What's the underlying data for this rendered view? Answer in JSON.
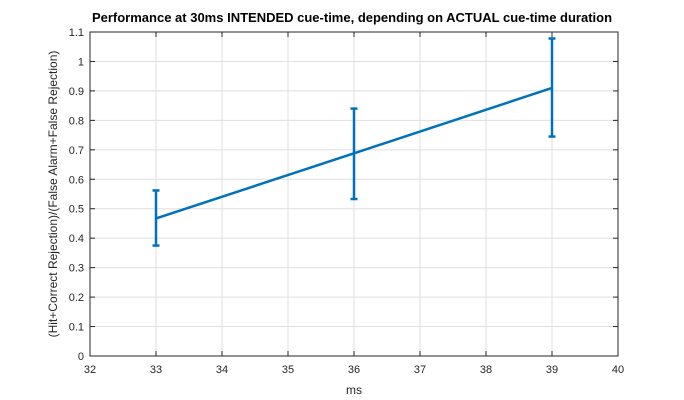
{
  "chart_data": {
    "type": "line",
    "title": "Performance at 30ms INTENDED cue-time, depending on ACTUAL cue-time duration",
    "xlabel": "ms",
    "ylabel": "(Hit+Correct Rejection)/(False Alarm+False Rejection)",
    "xlim": [
      32,
      40
    ],
    "ylim": [
      0,
      1.1
    ],
    "xticks": [
      "32",
      "33",
      "34",
      "35",
      "36",
      "37",
      "38",
      "39",
      "40"
    ],
    "yticks": [
      "0",
      "0.1",
      "0.2",
      "0.3",
      "0.4",
      "0.5",
      "0.6",
      "0.7",
      "0.8",
      "0.9",
      "1",
      "1.1"
    ],
    "grid": true,
    "series": [
      {
        "x": [
          33,
          36,
          39
        ],
        "y": [
          0.467,
          0.688,
          0.91
        ],
        "err_low": [
          0.375,
          0.533,
          0.745
        ],
        "err_high": [
          0.562,
          0.84,
          1.078
        ],
        "color": "#0072bd"
      }
    ]
  }
}
